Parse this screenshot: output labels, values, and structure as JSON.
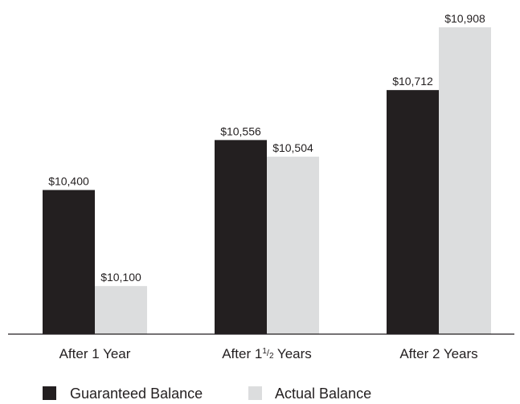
{
  "chart_data": {
    "type": "bar",
    "categories": [
      "After 1 Year",
      "After 1½ Years",
      "After 2 Years"
    ],
    "category_labels": [
      {
        "before": "After 1 Year",
        "frac_num": "",
        "frac_den": "",
        "after": ""
      },
      {
        "before": "After 1",
        "frac_num": "1",
        "frac_den": "2",
        "after": " Years"
      },
      {
        "before": "After 2 Years",
        "frac_num": "",
        "frac_den": "",
        "after": ""
      }
    ],
    "series": [
      {
        "name": "Guaranteed Balance",
        "color": "#231f20",
        "values": [
          10400,
          10556,
          10712
        ],
        "labels": [
          "$10,400",
          "$10,556",
          "$10,712"
        ]
      },
      {
        "name": "Actual Balance",
        "color": "#dcddde",
        "values": [
          10100,
          10504,
          10908
        ],
        "labels": [
          "$10,100",
          "$10,504",
          "$10,908"
        ]
      }
    ],
    "ylim": [
      9950,
      10908
    ],
    "grid": false,
    "y_axis_visible": false,
    "legend_placement": "bottom-left",
    "axis_color": "#231f20"
  }
}
